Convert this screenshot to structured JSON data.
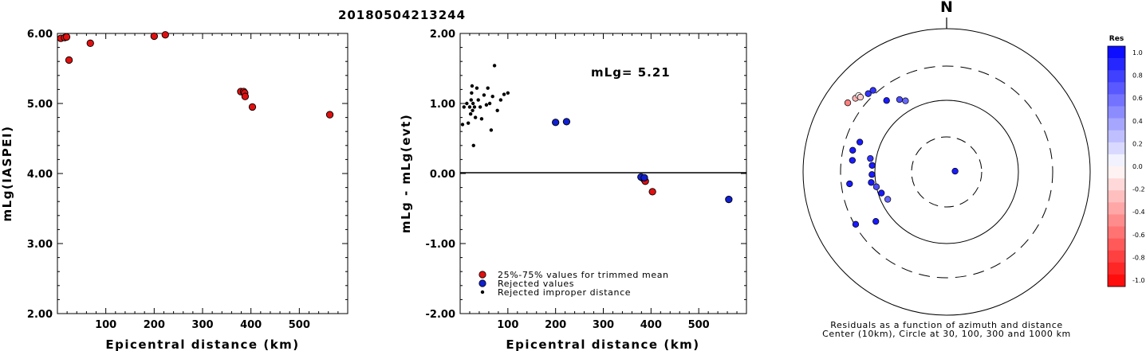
{
  "title": "20180504213244",
  "panel1": {
    "ylabel": "mLg(IASPEI)",
    "xlabel": "Epicentral distance (km)",
    "xticks": [
      "100",
      "200",
      "300",
      "400",
      "500"
    ],
    "yticks": [
      "2.00",
      "3.00",
      "4.00",
      "5.00",
      "6.00"
    ]
  },
  "panel2": {
    "ylabel": "mLg - mLg(evt)",
    "xlabel": "Epicentral distance (km)",
    "xticks": [
      "100",
      "200",
      "300",
      "400",
      "500"
    ],
    "yticks": [
      "-2.00",
      "-1.00",
      "0.00",
      "1.00",
      "2.00"
    ],
    "annotation": "mLg= 5.21",
    "legend": [
      "25%-75% values for trimmed mean",
      "Rejected values",
      "Rejected improper distance"
    ]
  },
  "panel3": {
    "north_label": "N",
    "caption_line1": "Residuals as a function of azimuth and distance",
    "caption_line2": "Center (10km), Circle at 30, 100, 300 and 1000 km",
    "colorbar_title": "Res",
    "colorbar_ticks": [
      "1.0",
      "0.8",
      "0.6",
      "0.4",
      "0.2",
      "0.0",
      "-0.2",
      "-0.4",
      "-0.6",
      "-0.8",
      "-1.0"
    ]
  },
  "colors": {
    "trimmed": "#e01010",
    "rejected": "#1020d0",
    "improper": "#000000"
  },
  "chart_data": [
    {
      "type": "scatter",
      "title": "20180504213244",
      "xlabel": "Epicentral distance (km)",
      "ylabel": "mLg(IASPEI)",
      "xlim": [
        0,
        600
      ],
      "ylim": [
        2.0,
        6.0
      ],
      "points": [
        {
          "x": 7,
          "y": 5.93
        },
        {
          "x": 15,
          "y": 5.94
        },
        {
          "x": 19,
          "y": 5.95
        },
        {
          "x": 24,
          "y": 5.62
        },
        {
          "x": 68,
          "y": 5.86
        },
        {
          "x": 200,
          "y": 5.96
        },
        {
          "x": 223,
          "y": 5.98
        },
        {
          "x": 379,
          "y": 5.17
        },
        {
          "x": 385,
          "y": 5.17
        },
        {
          "x": 387,
          "y": 5.15
        },
        {
          "x": 388,
          "y": 5.1
        },
        {
          "x": 403,
          "y": 4.95
        },
        {
          "x": 563,
          "y": 4.84
        }
      ]
    },
    {
      "type": "scatter",
      "xlabel": "Epicentral distance (km)",
      "ylabel": "mLg - mLg(evt)",
      "xlim": [
        0,
        600
      ],
      "ylim": [
        -2.0,
        2.0
      ],
      "series": [
        {
          "name": "25%-75% values for trimmed mean",
          "points": [
            {
              "x": 385,
              "y": -0.08
            },
            {
              "x": 388,
              "y": -0.11
            },
            {
              "x": 403,
              "y": -0.26
            }
          ]
        },
        {
          "name": "Rejected values",
          "points": [
            {
              "x": 200,
              "y": 0.73
            },
            {
              "x": 223,
              "y": 0.74
            },
            {
              "x": 379,
              "y": -0.05
            },
            {
              "x": 386,
              "y": -0.06
            },
            {
              "x": 563,
              "y": -0.37
            }
          ]
        },
        {
          "name": "Rejected improper distance",
          "points": [
            {
              "x": 5,
              "y": 0.7
            },
            {
              "x": 8,
              "y": 0.95
            },
            {
              "x": 14,
              "y": 1.0
            },
            {
              "x": 17,
              "y": 0.72
            },
            {
              "x": 20,
              "y": 0.95
            },
            {
              "x": 22,
              "y": 0.85
            },
            {
              "x": 23,
              "y": 1.05
            },
            {
              "x": 24,
              "y": 1.15
            },
            {
              "x": 25,
              "y": 1.25
            },
            {
              "x": 26,
              "y": 0.9
            },
            {
              "x": 27,
              "y": 1.0
            },
            {
              "x": 28,
              "y": 0.4
            },
            {
              "x": 30,
              "y": 0.95
            },
            {
              "x": 32,
              "y": 0.8
            },
            {
              "x": 35,
              "y": 1.22
            },
            {
              "x": 38,
              "y": 1.05
            },
            {
              "x": 42,
              "y": 0.95
            },
            {
              "x": 45,
              "y": 0.78
            },
            {
              "x": 50,
              "y": 1.12
            },
            {
              "x": 55,
              "y": 0.98
            },
            {
              "x": 58,
              "y": 1.22
            },
            {
              "x": 62,
              "y": 1.0
            },
            {
              "x": 65,
              "y": 0.62
            },
            {
              "x": 68,
              "y": 1.1
            },
            {
              "x": 72,
              "y": 1.54
            },
            {
              "x": 78,
              "y": 0.9
            },
            {
              "x": 85,
              "y": 1.05
            },
            {
              "x": 92,
              "y": 1.13
            },
            {
              "x": 100,
              "y": 1.15
            }
          ]
        }
      ],
      "annotations": [
        "mLg= 5.21"
      ]
    },
    {
      "type": "scatter",
      "subtype": "polar",
      "caption": "Residuals as a function of azimuth and distance",
      "rings_km": [
        30,
        100,
        300,
        1000
      ],
      "center_km": 10,
      "colorbar": {
        "label": "Res",
        "min": -1.0,
        "max": 1.0
      },
      "points": [
        {
          "az": 305,
          "dist": 480,
          "res": -0.5
        },
        {
          "az": 309,
          "dist": 430,
          "res": -0.3
        },
        {
          "az": 311,
          "dist": 420,
          "res": 0.0
        },
        {
          "az": 311,
          "dist": 390,
          "res": -0.2
        },
        {
          "az": 315,
          "dist": 350,
          "res": 0.8
        },
        {
          "az": 318,
          "dist": 340,
          "res": 0.8
        },
        {
          "az": 320,
          "dist": 200,
          "res": 0.9
        },
        {
          "az": 327,
          "dist": 160,
          "res": 0.7
        },
        {
          "az": 330,
          "dist": 140,
          "res": 0.6
        },
        {
          "az": 289,
          "dist": 190,
          "res": 0.9
        },
        {
          "az": 283,
          "dist": 220,
          "res": 0.9
        },
        {
          "az": 277,
          "dist": 210,
          "res": 0.9
        },
        {
          "az": 263,
          "dist": 230,
          "res": 0.9
        },
        {
          "az": 240,
          "dist": 290,
          "res": 0.9
        },
        {
          "az": 280,
          "dist": 120,
          "res": 0.8
        },
        {
          "az": 275,
          "dist": 110,
          "res": 0.9
        },
        {
          "az": 268,
          "dist": 110,
          "res": 0.9
        },
        {
          "az": 262,
          "dist": 115,
          "res": 0.9
        },
        {
          "az": 258,
          "dist": 100,
          "res": 0.7
        },
        {
          "az": 252,
          "dist": 90,
          "res": 0.9
        },
        {
          "az": 245,
          "dist": 80,
          "res": 0.6
        },
        {
          "az": 235,
          "dist": 160,
          "res": 0.9
        },
        {
          "az": 85,
          "dist": 12,
          "res": 0.9
        }
      ]
    }
  ]
}
